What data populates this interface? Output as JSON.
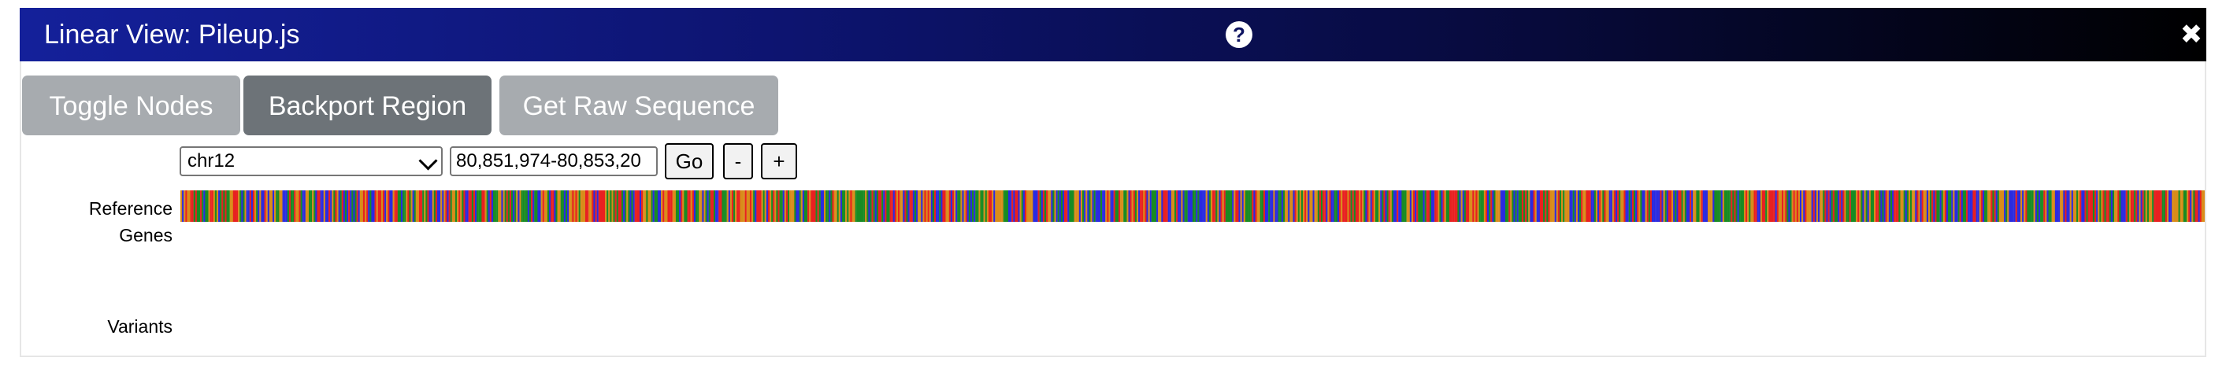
{
  "window": {
    "title": "Linear View: Pileup.js",
    "help_icon": "question-circle-icon",
    "close_icon": "close-x-icon"
  },
  "buttons": {
    "toggle_nodes": "Toggle Nodes",
    "backport_region": "Backport Region",
    "get_raw_sequence": "Get Raw Sequence"
  },
  "controls": {
    "chromosome": "chr12",
    "region": "80,851,974-80,853,20",
    "go": "Go",
    "zoom_out": "-",
    "zoom_in": "+"
  },
  "tracks": {
    "reference": "Reference",
    "genes": "Genes",
    "variants": "Variants"
  },
  "colors": {
    "A": "#188b23",
    "C": "#2a2ae0",
    "G": "#d98c1a",
    "T": "#e82020"
  }
}
